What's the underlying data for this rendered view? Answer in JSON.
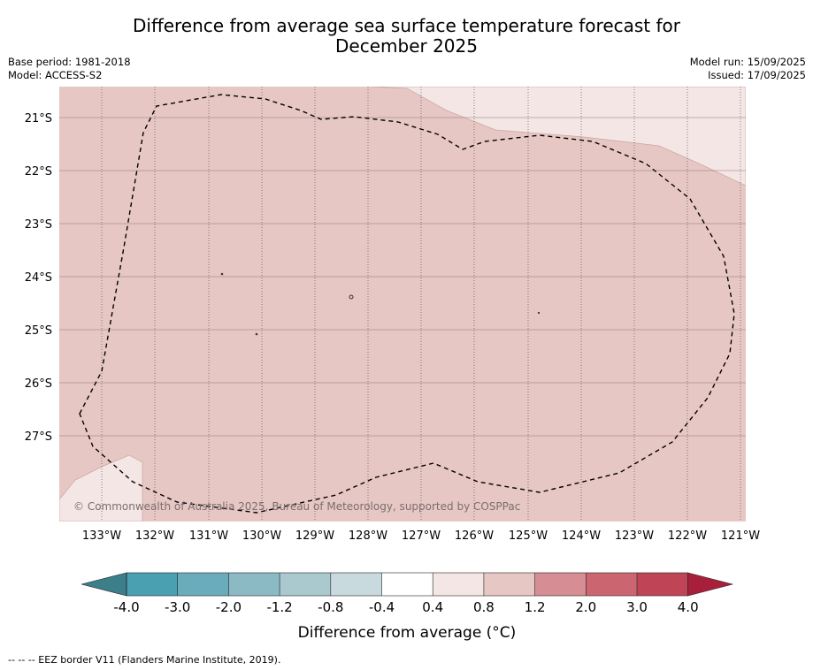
{
  "title_line1": "Difference from average sea surface temperature forecast for",
  "title_line2": "December 2025",
  "base_period": "Base period: 1981-2018",
  "model": "Model: ACCESS-S2",
  "model_run": "Model run: 15/09/2025",
  "issued": "Issued: 17/09/2025",
  "copyright": "© Commonwealth of Australia 2025, Bureau of Meteorology, supported by COSPPac",
  "lat_labels": [
    "21°S",
    "22°S",
    "23°S",
    "24°S",
    "25°S",
    "26°S",
    "27°S"
  ],
  "lon_labels": [
    "133°W",
    "132°W",
    "131°W",
    "130°W",
    "129°W",
    "128°W",
    "127°W",
    "126°W",
    "125°W",
    "124°W",
    "123°W",
    "122°W",
    "121°W"
  ],
  "colorbar": {
    "ticks": [
      "-4.0",
      "-3.0",
      "-2.0",
      "-1.2",
      "-0.8",
      "-0.4",
      "0.4",
      "0.8",
      "1.2",
      "2.0",
      "3.0",
      "4.0"
    ],
    "colors": [
      "#4a9fb1",
      "#6aacbb",
      "#8bbac5",
      "#a9c9cf",
      "#c8dadd",
      "#ffffff",
      "#f4e6e5",
      "#e7c7c3",
      "#d68d93",
      "#cb6670",
      "#bf4556"
    ],
    "under_color": "#3c7f8a",
    "over_color": "#a81f3b",
    "label": "Difference from average (°C)"
  },
  "map_fill": {
    "main": "#e7c7c3",
    "light": "#f4e6e5"
  },
  "footer": "--  --  -- EEZ border V11 (Flanders Marine Institute, 2019)."
}
